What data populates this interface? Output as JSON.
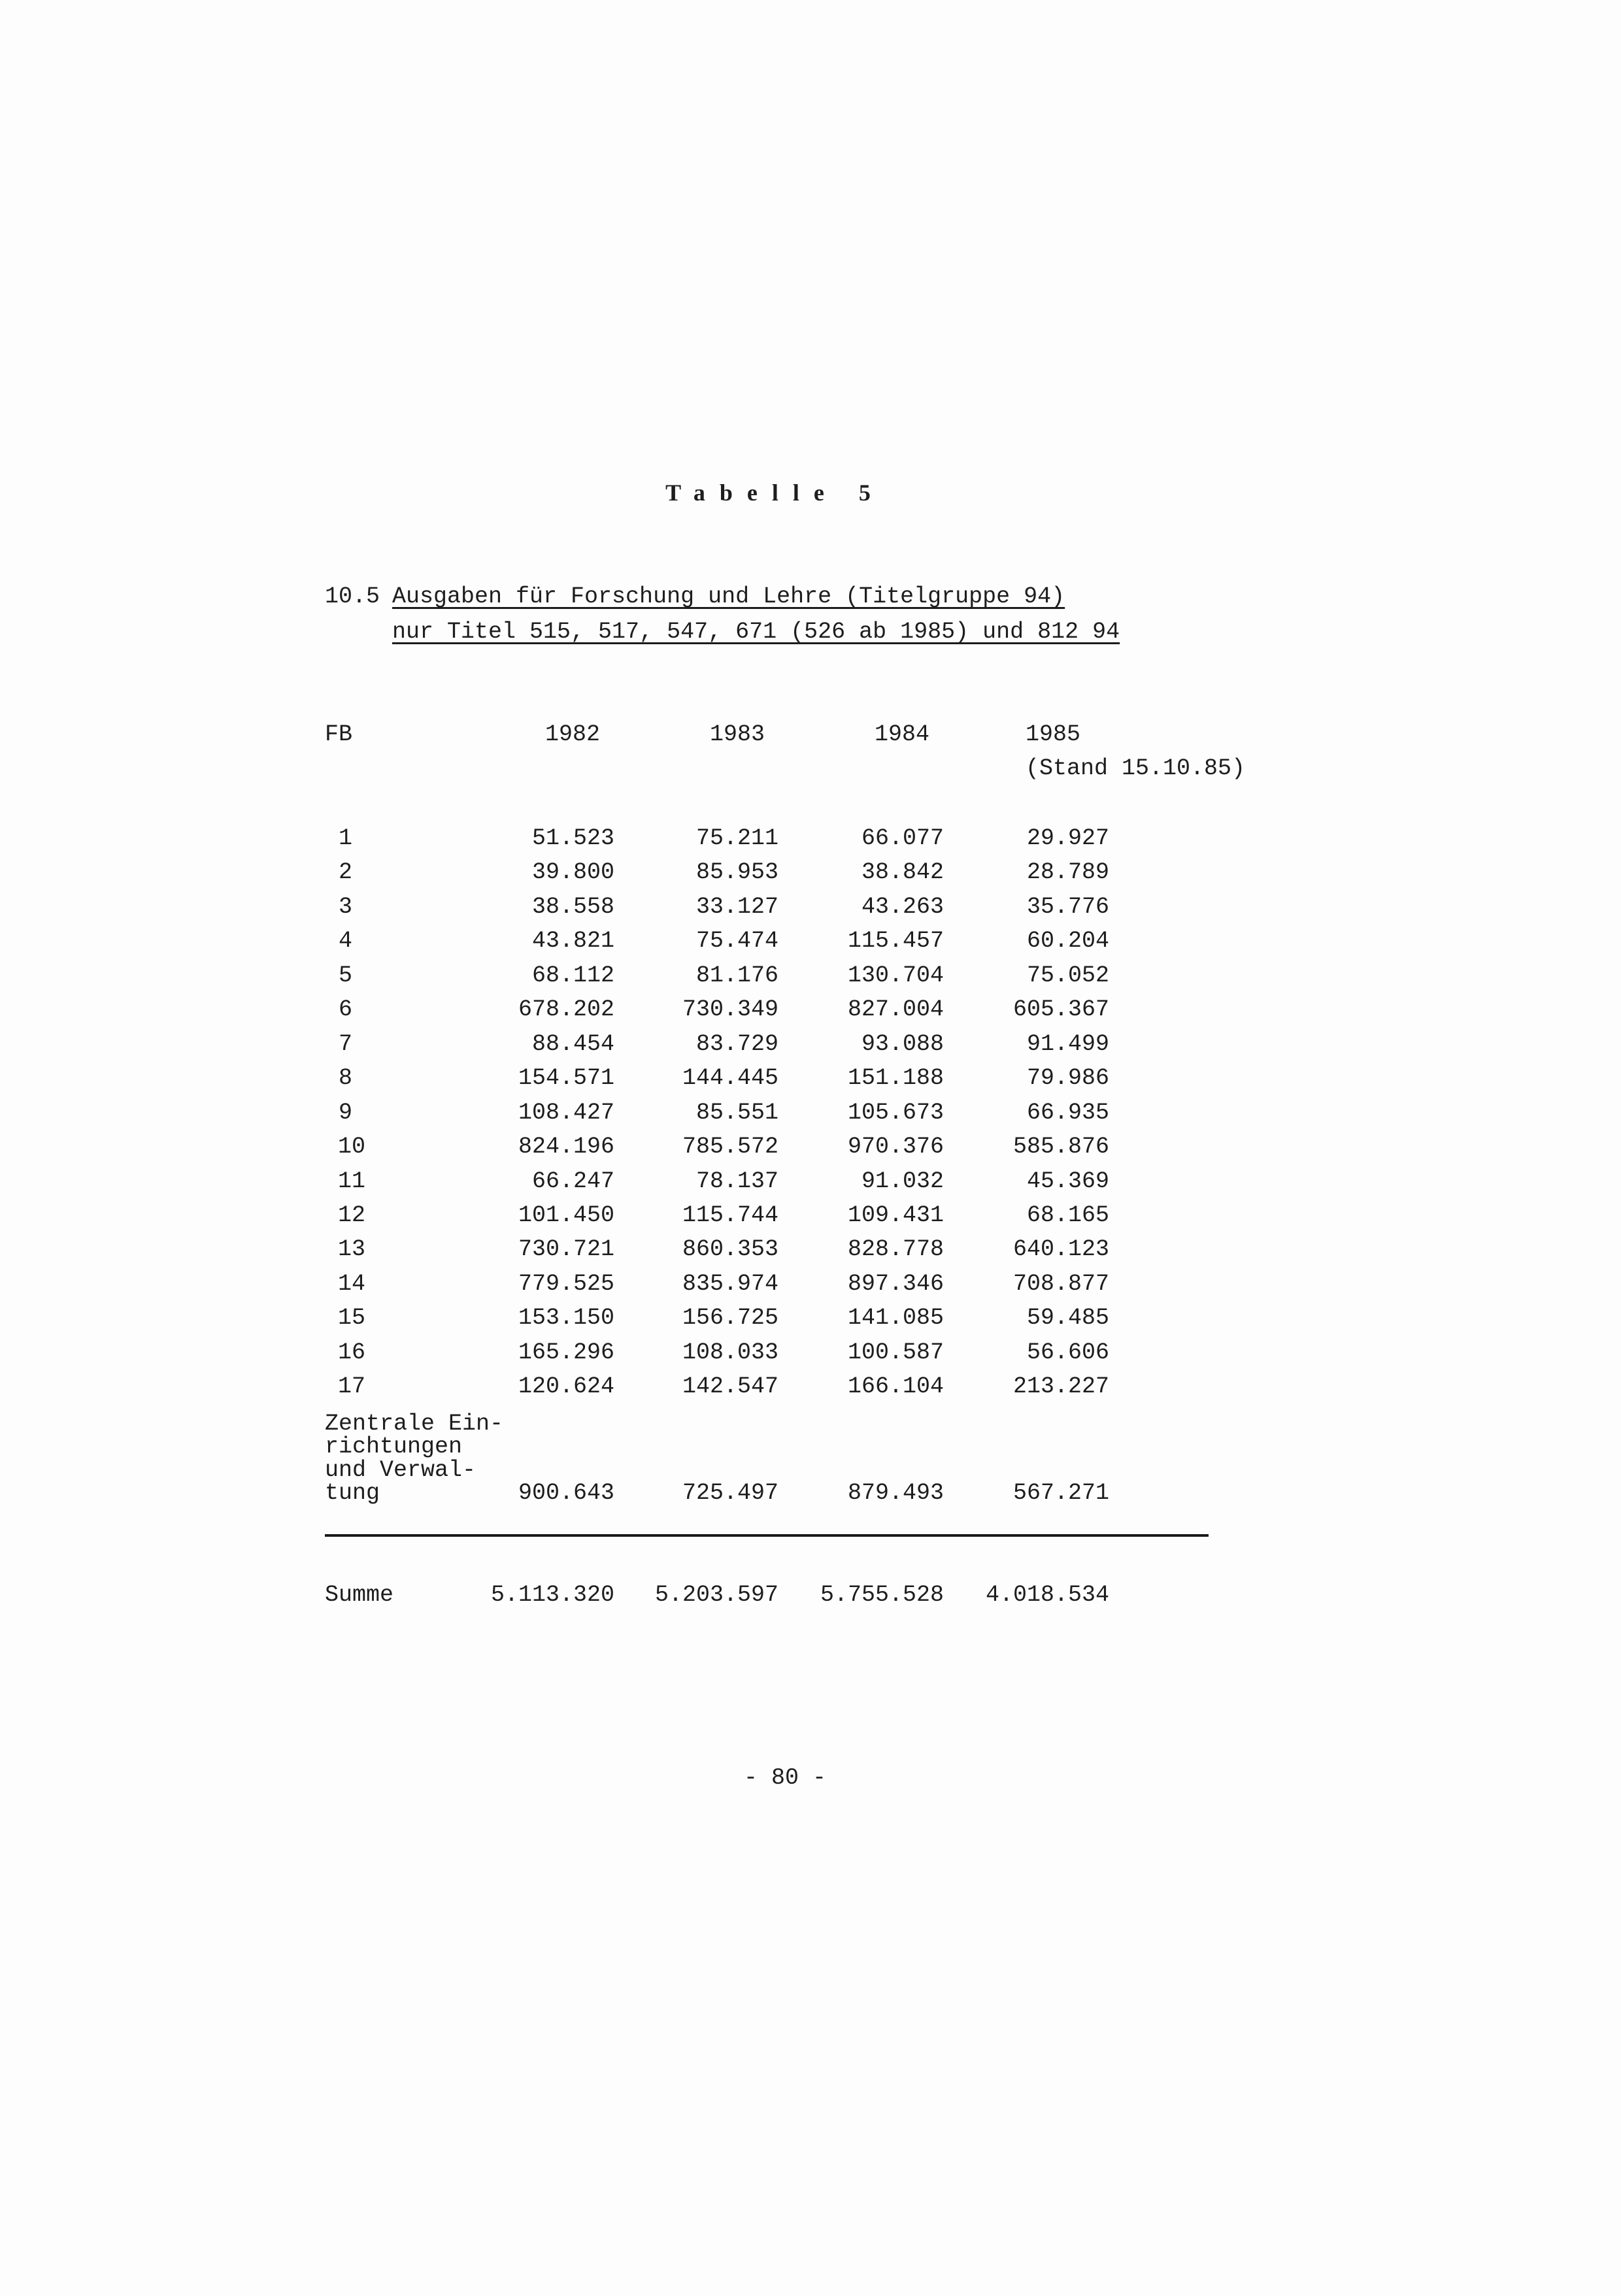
{
  "title": "Tabelle 5",
  "heading": {
    "number": "10.5",
    "line1": "Ausgaben für Forschung und Lehre (Titelgruppe 94)",
    "line2": "nur Titel 515, 517, 547, 671 (526 ab 1985) und 812 94"
  },
  "table": {
    "columns": [
      "FB",
      "1982",
      "1983",
      "1984",
      "1985"
    ],
    "column_note": "(Stand 15.10.85)",
    "rows": [
      {
        "fb": "1",
        "values": [
          "51.523",
          "75.211",
          "66.077",
          "29.927"
        ]
      },
      {
        "fb": "2",
        "values": [
          "39.800",
          "85.953",
          "38.842",
          "28.789"
        ]
      },
      {
        "fb": "3",
        "values": [
          "38.558",
          "33.127",
          "43.263",
          "35.776"
        ]
      },
      {
        "fb": "4",
        "values": [
          "43.821",
          "75.474",
          "115.457",
          "60.204"
        ]
      },
      {
        "fb": "5",
        "values": [
          "68.112",
          "81.176",
          "130.704",
          "75.052"
        ]
      },
      {
        "fb": "6",
        "values": [
          "678.202",
          "730.349",
          "827.004",
          "605.367"
        ]
      },
      {
        "fb": "7",
        "values": [
          "88.454",
          "83.729",
          "93.088",
          "91.499"
        ]
      },
      {
        "fb": "8",
        "values": [
          "154.571",
          "144.445",
          "151.188",
          "79.986"
        ]
      },
      {
        "fb": "9",
        "values": [
          "108.427",
          "85.551",
          "105.673",
          "66.935"
        ]
      },
      {
        "fb": "10",
        "values": [
          "824.196",
          "785.572",
          "970.376",
          "585.876"
        ]
      },
      {
        "fb": "11",
        "values": [
          "66.247",
          "78.137",
          "91.032",
          "45.369"
        ]
      },
      {
        "fb": "12",
        "values": [
          "101.450",
          "115.744",
          "109.431",
          "68.165"
        ]
      },
      {
        "fb": "13",
        "values": [
          "730.721",
          "860.353",
          "828.778",
          "640.123"
        ]
      },
      {
        "fb": "14",
        "values": [
          "779.525",
          "835.974",
          "897.346",
          "708.877"
        ]
      },
      {
        "fb": "15",
        "values": [
          "153.150",
          "156.725",
          "141.085",
          "59.485"
        ]
      },
      {
        "fb": "16",
        "values": [
          "165.296",
          "108.033",
          "100.587",
          "56.606"
        ]
      },
      {
        "fb": "17",
        "values": [
          "120.624",
          "142.547",
          "166.104",
          "213.227"
        ]
      }
    ],
    "central": {
      "label_lines": [
        "Zentrale Ein-",
        "richtungen",
        "und Verwal-",
        "tung"
      ],
      "values": [
        "900.643",
        "725.497",
        "879.493",
        "567.271"
      ]
    },
    "total": {
      "label": "Summe",
      "values": [
        "5.113.320",
        "5.203.597",
        "5.755.528",
        "4.018.534"
      ]
    }
  },
  "page_number": "- 80 -"
}
